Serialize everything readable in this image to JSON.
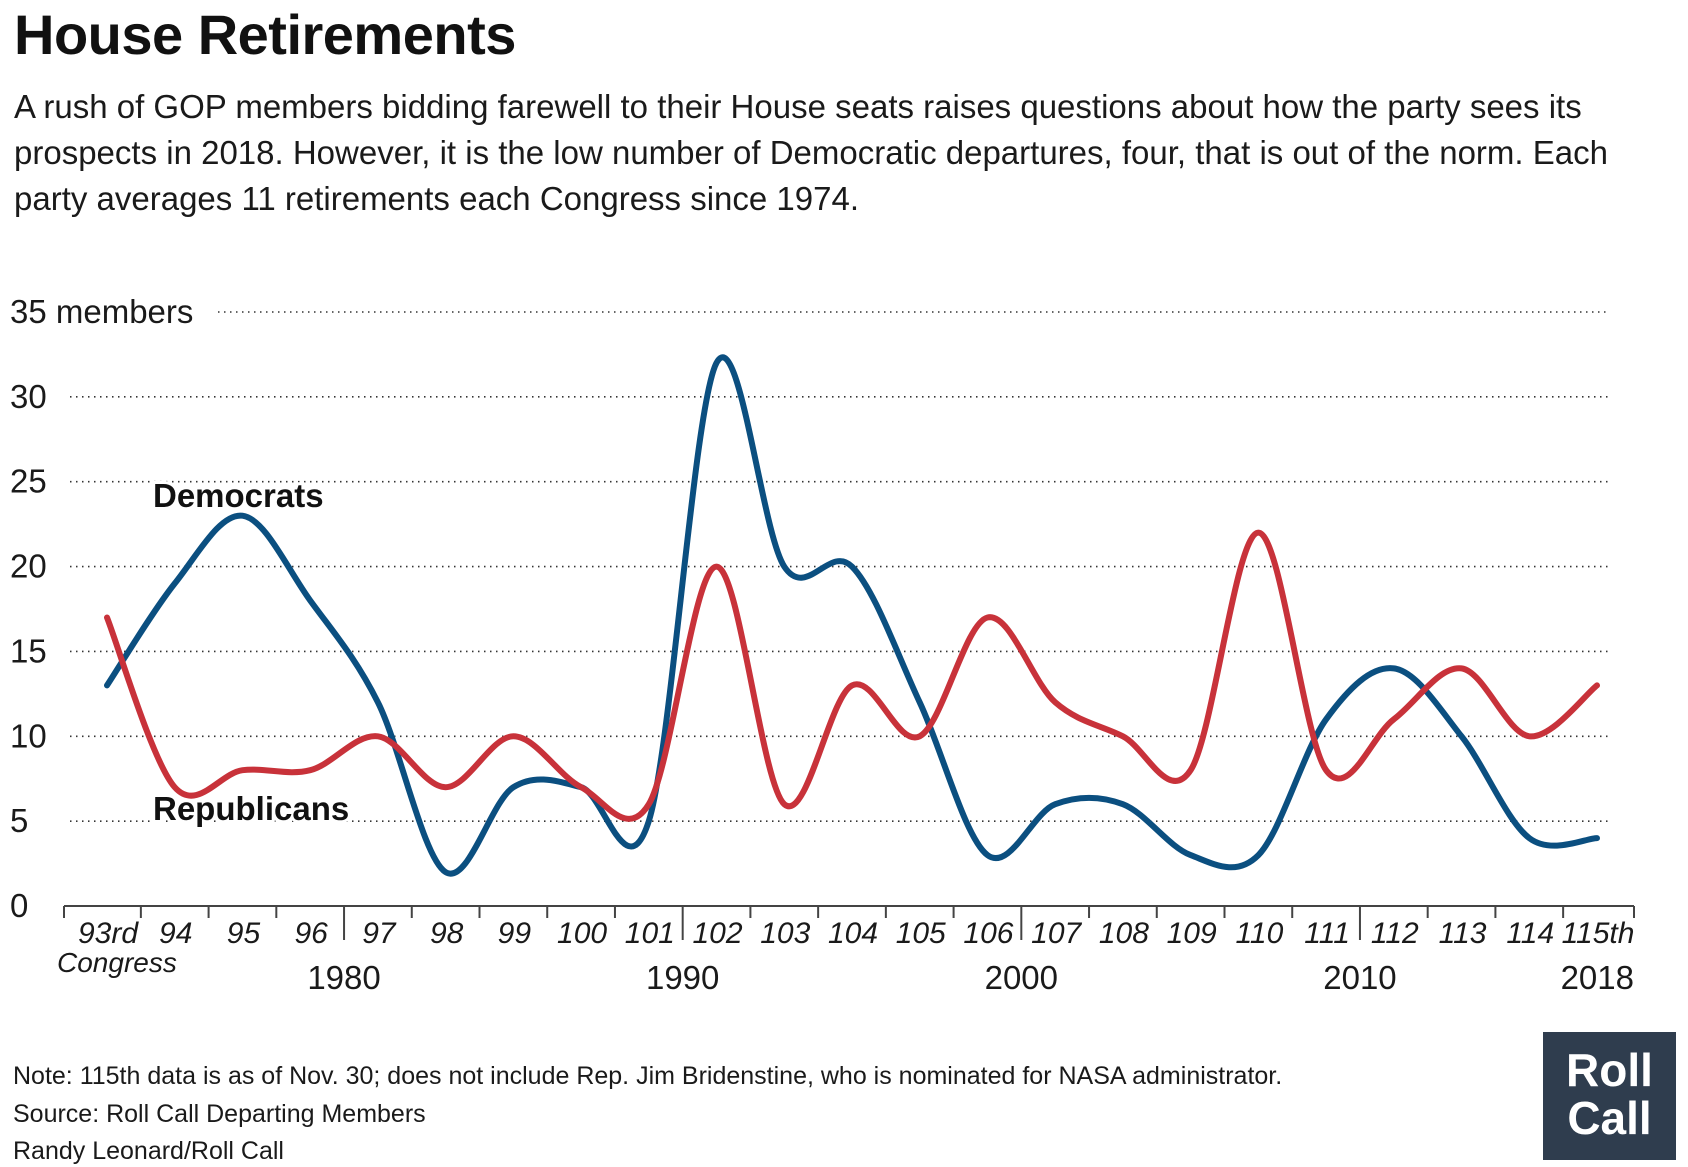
{
  "title": "House Retirements",
  "subtitle": "A rush of GOP members bidding farewell to their House seats raises questions about how the party sees its prospects in 2018. However, it is the low number of Democratic departures, four, that is out of the norm. Each party averages 11 retirements each Congress since 1974.",
  "notes": {
    "note": "Note: 115th data is as of Nov. 30; does not include Rep. Jim Bridenstine, who is nominated for NASA administrator.",
    "source": "Source: Roll Call Departing Members",
    "credit": "Randy Leonard/Roll Call"
  },
  "logo": {
    "line1": "Roll",
    "line2": "Call"
  },
  "chart_data": {
    "type": "line",
    "ylim": [
      0,
      35
    ],
    "y_ticks": [
      0,
      5,
      10,
      15,
      20,
      25,
      30,
      35
    ],
    "y_tick_labels": [
      "0",
      "5",
      "10",
      "15",
      "20",
      "25",
      "30",
      "35 members"
    ],
    "categories": [
      "93rd",
      "94",
      "95",
      "96",
      "97",
      "98",
      "99",
      "100",
      "101",
      "102",
      "103",
      "104",
      "105",
      "106",
      "107",
      "108",
      "109",
      "110",
      "111",
      "112",
      "113",
      "114",
      "115th"
    ],
    "category_sublabel": "Congress",
    "year_labels": [
      {
        "label": "1980",
        "after_category": "96"
      },
      {
        "label": "1990",
        "after_category": "101"
      },
      {
        "label": "2000",
        "after_category": "106"
      },
      {
        "label": "2010",
        "after_category": "111"
      },
      {
        "label": "2018",
        "after_category": "115th"
      }
    ],
    "grid": true,
    "series": [
      {
        "name": "Democrats",
        "color": "#0b4f80",
        "values": [
          13,
          19,
          23,
          18,
          12,
          2,
          7,
          7,
          5,
          32,
          20,
          20,
          12,
          3,
          6,
          6,
          3,
          3,
          11,
          14,
          10,
          4,
          4
        ]
      },
      {
        "name": "Republicans",
        "color": "#c8323a",
        "values": [
          17,
          7,
          8,
          8,
          10,
          7,
          10,
          7,
          6,
          20,
          6,
          13,
          10,
          17,
          12,
          10,
          8,
          22,
          8,
          11,
          14,
          10,
          13
        ]
      }
    ]
  }
}
